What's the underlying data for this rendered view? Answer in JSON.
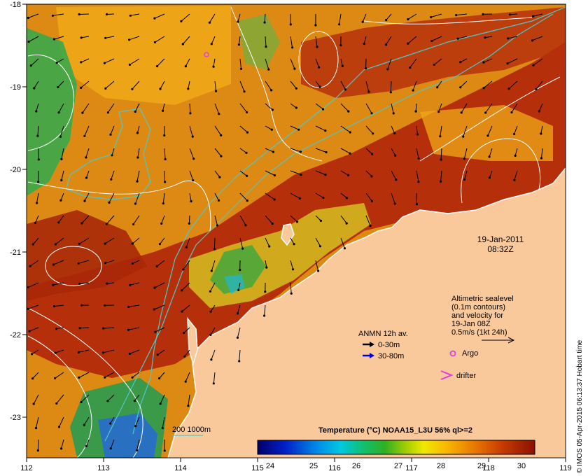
{
  "map": {
    "x_ticks": [
      "112",
      "113",
      "114",
      "115",
      "116",
      "117",
      "118",
      "119"
    ],
    "y_ticks": [
      "-18",
      "-19",
      "-20",
      "-21",
      "-22",
      "-23"
    ],
    "date_label": "19-Jan-2011",
    "time_label": "08:32Z",
    "bathymetry_label": "200  1000m",
    "colors": {
      "land": "#f9c99c",
      "warm_ocean": "#b02a08",
      "mid_ocean": "#e08a12",
      "cool_ocean": "#2ea84a",
      "contour": "#ffffff",
      "isobath": "#4fc7c7",
      "argo": "#e040e0",
      "drifter": "#e040e0",
      "arrow_shallow": "#000000",
      "arrow_deep": "#0000dd"
    }
  },
  "legend": {
    "altimetry_lines": [
      "Altimetric sealevel",
      "(0.1m contours)",
      "and velocity for",
      "19-Jan 08Z",
      "0.5m/s (1kt 24h)"
    ],
    "anmn_title": "ANMN 12h av.",
    "anmn_shallow": "0-30m",
    "anmn_deep": "30-80m",
    "argo_label": "Argo",
    "drifter_label": "drifter"
  },
  "colorbar": {
    "title": "Temperature (°C) NOAA15_L3U 56% ql>=2",
    "ticks": [
      "24",
      "25",
      "26",
      "27",
      "28",
      "29",
      "30"
    ]
  },
  "credit": "© IMOS 05-Apr-2015 06:13:37 Hobart time"
}
